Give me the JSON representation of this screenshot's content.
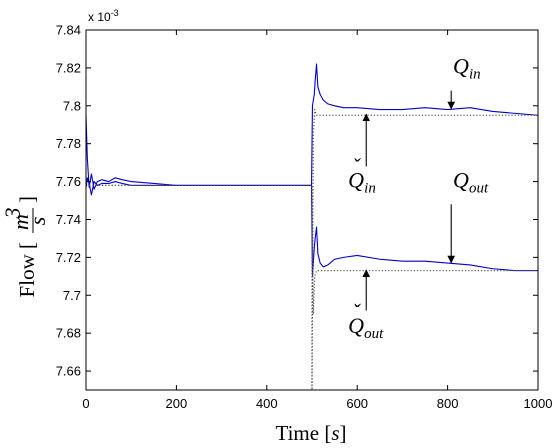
{
  "chart_data": {
    "type": "line",
    "xlabel": "Time [s]",
    "xlabel_parts": {
      "word": "Time",
      "open": "[",
      "unit": "s",
      "close": "]"
    },
    "ylabel_parts": {
      "word": "Flow",
      "open": "[",
      "num": "m",
      "exp": "3",
      "den": "s",
      "close": "]"
    },
    "y_multiplier": {
      "base": "x 10",
      "exponent": "-3"
    },
    "xlim": [
      0,
      1000
    ],
    "ylim": [
      7.65,
      7.84
    ],
    "x_ticks": [
      0,
      200,
      400,
      600,
      800,
      1000
    ],
    "x_tick_labels": [
      "0",
      "200",
      "400",
      "600",
      "800",
      "1000"
    ],
    "y_ticks": [
      7.66,
      7.68,
      7.7,
      7.72,
      7.74,
      7.76,
      7.78,
      7.8,
      7.82,
      7.84
    ],
    "y_tick_labels": [
      "7.66",
      "7.68",
      "7.7",
      "7.72",
      "7.74",
      "7.76",
      "7.78",
      "7.8",
      "7.82",
      "7.84"
    ],
    "grid": false,
    "series": [
      {
        "color": "#0000cc",
        "style": "solid",
        "x": [
          0,
          3,
          7,
          12,
          18,
          25,
          35,
          50,
          65,
          80,
          100,
          150,
          200,
          300,
          400,
          499,
          501,
          505,
          507,
          510,
          513,
          518,
          525,
          535,
          550,
          570,
          600,
          650,
          700,
          750,
          800,
          850,
          900,
          950,
          1000
        ],
        "y": [
          7.795,
          7.772,
          7.757,
          7.764,
          7.756,
          7.76,
          7.761,
          7.76,
          7.762,
          7.761,
          7.76,
          7.759,
          7.758,
          7.758,
          7.758,
          7.758,
          7.8,
          7.806,
          7.813,
          7.822,
          7.81,
          7.806,
          7.803,
          7.801,
          7.8,
          7.799,
          7.799,
          7.798,
          7.798,
          7.799,
          7.798,
          7.799,
          7.797,
          7.796,
          7.795
        ]
      },
      {
        "color": "#0000cc",
        "style": "solid",
        "x": [
          0,
          3,
          7,
          12,
          18,
          25,
          35,
          50,
          65,
          80,
          100,
          150,
          200,
          300,
          400,
          499,
          501,
          505,
          507,
          510,
          513,
          518,
          525,
          535,
          550,
          570,
          600,
          650,
          700,
          750,
          800,
          850,
          900,
          950,
          1000
        ],
        "y": [
          7.757,
          7.762,
          7.759,
          7.753,
          7.76,
          7.758,
          7.759,
          7.759,
          7.76,
          7.759,
          7.758,
          7.758,
          7.758,
          7.758,
          7.758,
          7.758,
          7.71,
          7.725,
          7.73,
          7.736,
          7.722,
          7.717,
          7.715,
          7.716,
          7.719,
          7.72,
          7.721,
          7.719,
          7.718,
          7.718,
          7.717,
          7.716,
          7.714,
          7.713,
          7.713
        ]
      },
      {
        "color": "#555555",
        "style": "dotted",
        "x": [
          0,
          499,
          500,
          500.01,
          503,
          506,
          510,
          520,
          1000
        ],
        "y": [
          7.758,
          7.758,
          7.758,
          7.65,
          7.785,
          7.798,
          7.795,
          7.795,
          7.795
        ]
      },
      {
        "color": "#555555",
        "style": "dotted",
        "x": [
          0,
          499,
          500,
          503,
          506,
          510,
          520,
          1000
        ],
        "y": [
          7.758,
          7.758,
          7.758,
          7.69,
          7.71,
          7.713,
          7.713,
          7.713
        ]
      }
    ],
    "annotations": [
      {
        "base": "Q",
        "accent": "",
        "sub": "in",
        "text_x": 812,
        "text_y": 7.817,
        "arrow_from": [
          808,
          7.808
        ],
        "arrow_to": [
          808,
          7.7985
        ]
      },
      {
        "base": "Q",
        "accent": "",
        "sub": "out",
        "text_x": 812,
        "text_y": 7.757,
        "arrow_from": [
          808,
          7.748
        ],
        "arrow_to": [
          808,
          7.7172
        ]
      },
      {
        "base": "Q",
        "accent": "ˇ",
        "sub": "in",
        "text_x": 580,
        "text_y": 7.757,
        "arrow_from": [
          620,
          7.768
        ],
        "arrow_to": [
          620,
          7.7955
        ]
      },
      {
        "base": "Q",
        "accent": "ˇ",
        "sub": "out",
        "text_x": 580,
        "text_y": 7.68,
        "arrow_from": [
          620,
          7.692
        ],
        "arrow_to": [
          620,
          7.7133
        ]
      }
    ]
  }
}
